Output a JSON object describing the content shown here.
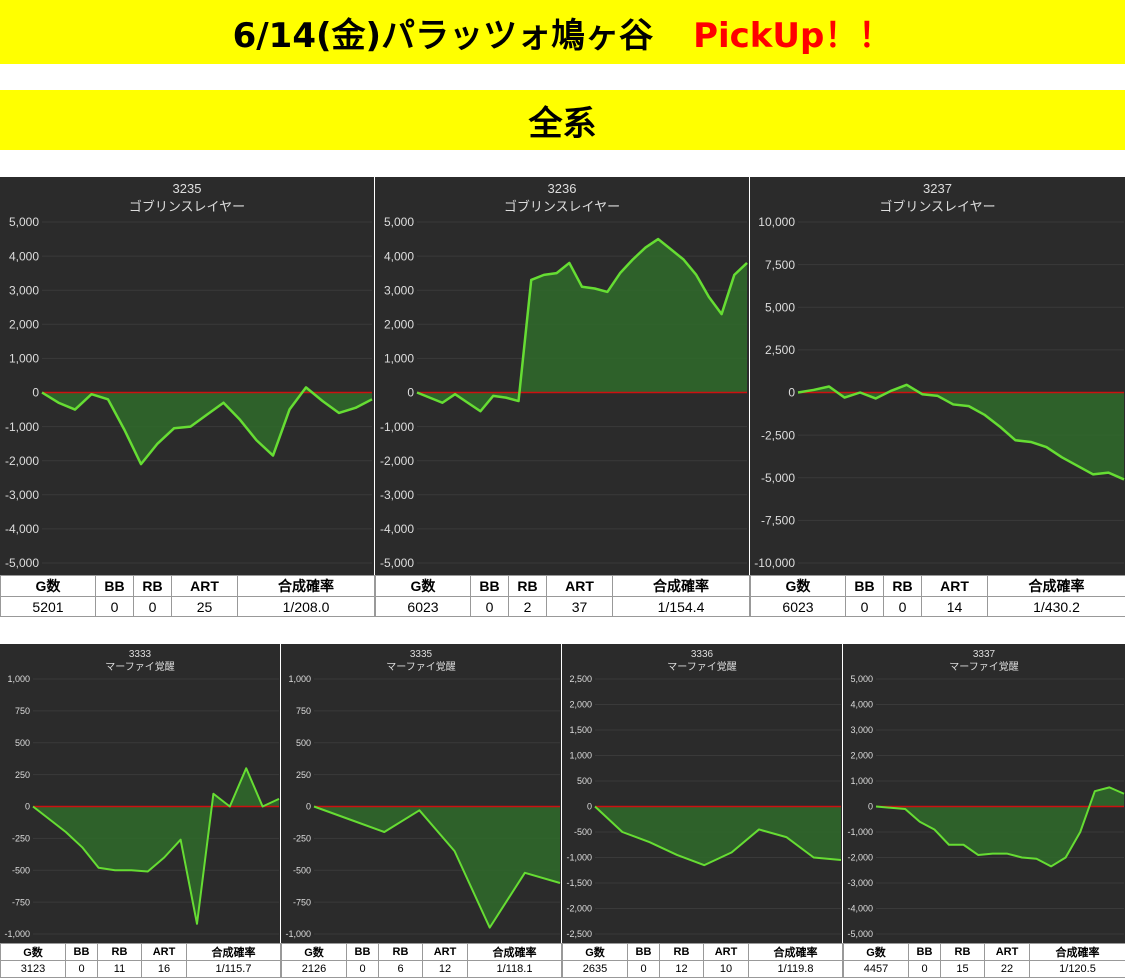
{
  "banner": {
    "title": "6/14(金)パラッツォ鳩ヶ谷",
    "pickup": "PickUp！！",
    "subtitle": "全系"
  },
  "stats_headers": [
    "G数",
    "BB",
    "RB",
    "ART",
    "合成確率"
  ],
  "colors": {
    "line": "#66dd33",
    "fill": "#2f6b2a",
    "zero": "#cc1111",
    "bg": "#2b2b2b",
    "grid": "#3a3a3a",
    "text": "#dddddd"
  },
  "chart_data": [
    {
      "type": "line",
      "machine_no": "3235",
      "machine_name": "ゴブリンスレイヤー",
      "yticks": [
        "5,000",
        "4,000",
        "3,000",
        "2,000",
        "1,000",
        "0",
        "-1,000",
        "-2,000",
        "-3,000",
        "-4,000",
        "-5,000"
      ],
      "ylim": [
        -5000,
        5000
      ],
      "y": [
        0,
        -300,
        -500,
        -50,
        -200,
        -1100,
        -2100,
        -1500,
        -1050,
        -1000,
        -650,
        -300,
        -800,
        -1400,
        -1850,
        -500,
        150,
        -250,
        -600,
        -450,
        -200
      ],
      "stats": [
        "5201",
        "0",
        "0",
        "25",
        "1/208.0"
      ]
    },
    {
      "type": "line",
      "machine_no": "3236",
      "machine_name": "ゴブリンスレイヤー",
      "yticks": [
        "5,000",
        "4,000",
        "3,000",
        "2,000",
        "1,000",
        "0",
        "-1,000",
        "-2,000",
        "-3,000",
        "-4,000",
        "-5,000"
      ],
      "ylim": [
        -5000,
        5000
      ],
      "y": [
        0,
        -150,
        -300,
        -50,
        -300,
        -550,
        -100,
        -150,
        -250,
        3300,
        3450,
        3500,
        3800,
        3100,
        3050,
        2950,
        3500,
        3900,
        4250,
        4500,
        4200,
        3900,
        3450,
        2800,
        2300,
        3450,
        3800
      ],
      "stats": [
        "6023",
        "0",
        "2",
        "37",
        "1/154.4"
      ]
    },
    {
      "type": "line",
      "machine_no": "3237",
      "machine_name": "ゴブリンスレイヤー",
      "yticks": [
        "10,000",
        "7,500",
        "5,000",
        "2,500",
        "0",
        "-2,500",
        "-5,000",
        "-7,500",
        "-10,000"
      ],
      "ylim": [
        -10000,
        10000
      ],
      "y": [
        0,
        150,
        350,
        -300,
        0,
        -350,
        100,
        450,
        -100,
        -200,
        -700,
        -800,
        -1300,
        -2000,
        -2800,
        -2900,
        -3200,
        -3800,
        -4300,
        -4800,
        -4700,
        -5100
      ],
      "stats": [
        "6023",
        "0",
        "0",
        "14",
        "1/430.2"
      ]
    },
    {
      "type": "line",
      "machine_no": "3333",
      "machine_name": "マーファイ覚醒",
      "yticks": [
        "1,000",
        "750",
        "500",
        "250",
        "0",
        "-250",
        "-500",
        "-750",
        "-1,000"
      ],
      "ylim": [
        -1000,
        1000
      ],
      "y": [
        0,
        -100,
        -200,
        -320,
        -480,
        -500,
        -500,
        -510,
        -400,
        -260,
        -920,
        100,
        0,
        300,
        0,
        60
      ],
      "stats": [
        "3123",
        "0",
        "11",
        "16",
        "1/115.7"
      ]
    },
    {
      "type": "line",
      "machine_no": "3335",
      "machine_name": "マーファイ覚醒",
      "yticks": [
        "1,000",
        "750",
        "500",
        "250",
        "0",
        "-250",
        "-500",
        "-750",
        "-1,000"
      ],
      "ylim": [
        -1000,
        1000
      ],
      "y": [
        0,
        -100,
        -200,
        -30,
        -350,
        -950,
        -520,
        -600
      ],
      "stats": [
        "2126",
        "0",
        "6",
        "12",
        "1/118.1"
      ]
    },
    {
      "type": "line",
      "machine_no": "3336",
      "machine_name": "マーファイ覚醒",
      "yticks": [
        "2,500",
        "2,000",
        "1,500",
        "1,000",
        "500",
        "0",
        "-500",
        "-1,000",
        "-1,500",
        "-2,000",
        "-2,500"
      ],
      "ylim": [
        -2500,
        2500
      ],
      "y": [
        0,
        -500,
        -700,
        -950,
        -1150,
        -900,
        -450,
        -600,
        -1000,
        -1050
      ],
      "stats": [
        "2635",
        "0",
        "12",
        "10",
        "1/119.8"
      ]
    },
    {
      "type": "line",
      "machine_no": "3337",
      "machine_name": "マーファイ覚醒",
      "yticks": [
        "5,000",
        "4,000",
        "3,000",
        "2,000",
        "1,000",
        "0",
        "-1,000",
        "-2,000",
        "-3,000",
        "-4,000",
        "-5,000"
      ],
      "ylim": [
        -5000,
        5000
      ],
      "y": [
        0,
        -50,
        -100,
        -600,
        -900,
        -1500,
        -1500,
        -1900,
        -1850,
        -1850,
        -2000,
        -2050,
        -2350,
        -2000,
        -1000,
        600,
        750,
        500
      ],
      "stats": [
        "4457",
        "0",
        "15",
        "22",
        "1/120.5"
      ]
    }
  ]
}
